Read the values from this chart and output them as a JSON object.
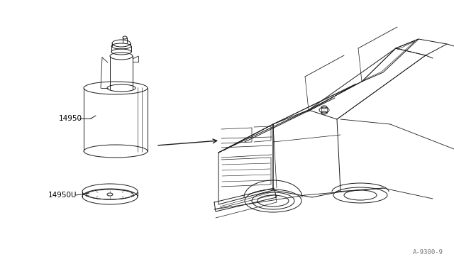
{
  "bg_color": "#ffffff",
  "line_color": "#1a1a1a",
  "label_color": "#000000",
  "watermark_text": "A-9300-9",
  "label_14950": "14950",
  "label_14950U": "14950U",
  "fig_width": 6.4,
  "fig_height": 3.72,
  "dpi": 100
}
